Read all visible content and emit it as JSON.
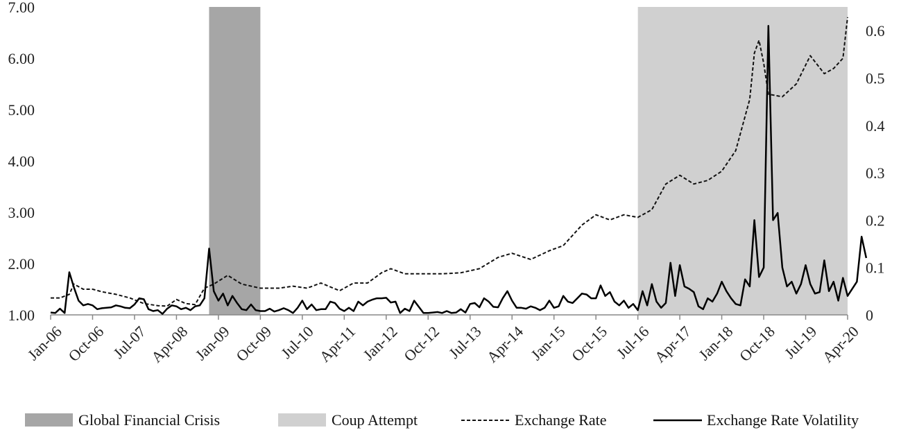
{
  "chart_data": {
    "type": "line",
    "x_tick_labels": [
      "Jan-06",
      "Oct-06",
      "Jul-07",
      "Apr-08",
      "Jan-09",
      "Oct-09",
      "Jul-10",
      "Apr-11",
      "Jan-12",
      "Oct-12",
      "Jul-13",
      "Apr-14",
      "Jan-15",
      "Oct-15",
      "Jul-16",
      "Apr-17",
      "Jan-18",
      "Oct-18",
      "Jul-19",
      "Apr-20"
    ],
    "y_left": {
      "ticks": [
        "1.00",
        "2.00",
        "3.00",
        "4.00",
        "5.00",
        "6.00",
        "7.00"
      ],
      "lim": [
        1,
        7
      ]
    },
    "y_right": {
      "ticks": [
        "0",
        "0.1",
        "0.2",
        "0.3",
        "0.4",
        "0.5",
        "0.6"
      ],
      "lim": [
        0,
        0.65
      ]
    },
    "grid": false,
    "legend_placement": "bottom",
    "shaded_periods": [
      {
        "name": "Global Financial Crisis",
        "start": "Nov-08",
        "end": "Oct-09",
        "color": "#a6a6a6"
      },
      {
        "name": "Coup Attempt",
        "start": "Jul-16",
        "end": "Apr-20",
        "color": "#d0d0d0"
      }
    ],
    "series": [
      {
        "name": "Exchange Rate",
        "axis": "left",
        "style": "dashed",
        "color": "#111111",
        "points": [
          [
            "Jan-06",
            1.33
          ],
          [
            "Mar-06",
            1.33
          ],
          [
            "May-06",
            1.4
          ],
          [
            "Jun-06",
            1.6
          ],
          [
            "Aug-06",
            1.5
          ],
          [
            "Oct-06",
            1.5
          ],
          [
            "Dec-06",
            1.45
          ],
          [
            "Mar-07",
            1.4
          ],
          [
            "Jun-07",
            1.33
          ],
          [
            "Sep-07",
            1.22
          ],
          [
            "Dec-07",
            1.18
          ],
          [
            "Feb-08",
            1.17
          ],
          [
            "Apr-08",
            1.3
          ],
          [
            "Jun-08",
            1.22
          ],
          [
            "Aug-08",
            1.2
          ],
          [
            "Oct-08",
            1.52
          ],
          [
            "Dec-08",
            1.6
          ],
          [
            "Mar-09",
            1.77
          ],
          [
            "Jun-09",
            1.6
          ],
          [
            "Oct-09",
            1.52
          ],
          [
            "Feb-10",
            1.52
          ],
          [
            "May-10",
            1.56
          ],
          [
            "Aug-10",
            1.52
          ],
          [
            "Nov-10",
            1.62
          ],
          [
            "Mar-11",
            1.47
          ],
          [
            "Jun-11",
            1.62
          ],
          [
            "Sep-11",
            1.62
          ],
          [
            "Dec-11",
            1.82
          ],
          [
            "Feb-12",
            1.9
          ],
          [
            "May-12",
            1.8
          ],
          [
            "Sep-12",
            1.8
          ],
          [
            "Jan-13",
            1.8
          ],
          [
            "May-13",
            1.82
          ],
          [
            "Sep-13",
            1.9
          ],
          [
            "Jan-14",
            2.12
          ],
          [
            "Apr-14",
            2.2
          ],
          [
            "Aug-14",
            2.08
          ],
          [
            "Dec-14",
            2.25
          ],
          [
            "Mar-15",
            2.35
          ],
          [
            "Jul-15",
            2.75
          ],
          [
            "Oct-15",
            2.95
          ],
          [
            "Jan-16",
            2.85
          ],
          [
            "Apr-16",
            2.95
          ],
          [
            "Jul-16",
            2.9
          ],
          [
            "Oct-16",
            3.05
          ],
          [
            "Jan-17",
            3.55
          ],
          [
            "Apr-17",
            3.72
          ],
          [
            "Jul-17",
            3.55
          ],
          [
            "Oct-17",
            3.62
          ],
          [
            "Jan-18",
            3.8
          ],
          [
            "Apr-18",
            4.2
          ],
          [
            "Jul-18",
            5.2
          ],
          [
            "Aug-18",
            6.1
          ],
          [
            "Sep-18",
            6.35
          ],
          [
            "Oct-18",
            5.9
          ],
          [
            "Nov-18",
            5.3
          ],
          [
            "Feb-19",
            5.25
          ],
          [
            "May-19",
            5.5
          ],
          [
            "Aug-19",
            6.05
          ],
          [
            "Nov-19",
            5.7
          ],
          [
            "Jan-20",
            5.8
          ],
          [
            "Mar-20",
            6.0
          ],
          [
            "Apr-20",
            6.8
          ]
        ]
      },
      {
        "name": "Exchange Rate Volatility",
        "axis": "right",
        "style": "solid",
        "color": "#000000",
        "points": [
          [
            "Jan-06",
            0.005
          ],
          [
            "Feb-06",
            0.004
          ],
          [
            "Mar-06",
            0.013
          ],
          [
            "Apr-06",
            0.004
          ],
          [
            "May-06",
            0.09
          ],
          [
            "Jun-06",
            0.058
          ],
          [
            "Jul-06",
            0.03
          ],
          [
            "Aug-06",
            0.02
          ],
          [
            "Sep-06",
            0.023
          ],
          [
            "Oct-06",
            0.02
          ],
          [
            "Nov-06",
            0.012
          ],
          [
            "Dec-06",
            0.014
          ],
          [
            "Jan-07",
            0.015
          ],
          [
            "Feb-07",
            0.016
          ],
          [
            "Mar-07",
            0.02
          ],
          [
            "Apr-07",
            0.018
          ],
          [
            "May-07",
            0.015
          ],
          [
            "Jun-07",
            0.014
          ],
          [
            "Jul-07",
            0.022
          ],
          [
            "Aug-07",
            0.035
          ],
          [
            "Sep-07",
            0.033
          ],
          [
            "Oct-07",
            0.012
          ],
          [
            "Nov-07",
            0.008
          ],
          [
            "Dec-07",
            0.01
          ],
          [
            "Jan-08",
            0.002
          ],
          [
            "Feb-08",
            0.013
          ],
          [
            "Mar-08",
            0.02
          ],
          [
            "Apr-08",
            0.018
          ],
          [
            "May-08",
            0.012
          ],
          [
            "Jun-08",
            0.015
          ],
          [
            "Jul-08",
            0.01
          ],
          [
            "Aug-08",
            0.018
          ],
          [
            "Sep-08",
            0.02
          ],
          [
            "Oct-08",
            0.035
          ],
          [
            "Nov-08",
            0.14
          ],
          [
            "Dec-08",
            0.05
          ],
          [
            "Jan-09",
            0.03
          ],
          [
            "Feb-09",
            0.045
          ],
          [
            "Mar-09",
            0.02
          ],
          [
            "Apr-09",
            0.04
          ],
          [
            "May-09",
            0.025
          ],
          [
            "Jun-09",
            0.012
          ],
          [
            "Jul-09",
            0.01
          ],
          [
            "Aug-09",
            0.022
          ],
          [
            "Sep-09",
            0.01
          ],
          [
            "Oct-09",
            0.008
          ],
          [
            "Nov-09",
            0.008
          ],
          [
            "Dec-09",
            0.013
          ],
          [
            "Jan-10",
            0.007
          ],
          [
            "Feb-10",
            0.01
          ],
          [
            "Mar-10",
            0.014
          ],
          [
            "Apr-10",
            0.01
          ],
          [
            "May-10",
            0.004
          ],
          [
            "Jun-10",
            0.015
          ],
          [
            "Jul-10",
            0.03
          ],
          [
            "Aug-10",
            0.012
          ],
          [
            "Sep-10",
            0.022
          ],
          [
            "Oct-10",
            0.01
          ],
          [
            "Nov-10",
            0.012
          ],
          [
            "Dec-10",
            0.012
          ],
          [
            "Jan-11",
            0.028
          ],
          [
            "Feb-11",
            0.025
          ],
          [
            "Mar-11",
            0.013
          ],
          [
            "Apr-11",
            0.008
          ],
          [
            "May-11",
            0.015
          ],
          [
            "Jun-11",
            0.008
          ],
          [
            "Jul-11",
            0.028
          ],
          [
            "Aug-11",
            0.02
          ],
          [
            "Sep-11",
            0.028
          ],
          [
            "Oct-11",
            0.032
          ],
          [
            "Nov-11",
            0.035
          ],
          [
            "Dec-11",
            0.035
          ],
          [
            "Jan-12",
            0.036
          ],
          [
            "Feb-12",
            0.026
          ],
          [
            "Mar-12",
            0.028
          ],
          [
            "Apr-12",
            0.004
          ],
          [
            "May-12",
            0.013
          ],
          [
            "Jun-12",
            0.008
          ],
          [
            "Jul-12",
            0.03
          ],
          [
            "Aug-12",
            0.017
          ],
          [
            "Sep-12",
            0.004
          ],
          [
            "Oct-12",
            0.004
          ],
          [
            "Nov-12",
            0.005
          ],
          [
            "Dec-12",
            0.006
          ],
          [
            "Jan-13",
            0.004
          ],
          [
            "Feb-13",
            0.008
          ],
          [
            "Mar-13",
            0.004
          ],
          [
            "Apr-13",
            0.005
          ],
          [
            "May-13",
            0.012
          ],
          [
            "Jun-13",
            0.005
          ],
          [
            "Jul-13",
            0.023
          ],
          [
            "Aug-13",
            0.025
          ],
          [
            "Sep-13",
            0.016
          ],
          [
            "Oct-13",
            0.035
          ],
          [
            "Nov-13",
            0.028
          ],
          [
            "Dec-13",
            0.017
          ],
          [
            "Jan-14",
            0.016
          ],
          [
            "Feb-14",
            0.035
          ],
          [
            "Mar-14",
            0.05
          ],
          [
            "Apr-14",
            0.03
          ],
          [
            "May-14",
            0.015
          ],
          [
            "Jun-14",
            0.015
          ],
          [
            "Jul-14",
            0.013
          ],
          [
            "Aug-14",
            0.018
          ],
          [
            "Sep-14",
            0.015
          ],
          [
            "Oct-14",
            0.01
          ],
          [
            "Nov-14",
            0.015
          ],
          [
            "Dec-14",
            0.03
          ],
          [
            "Jan-15",
            0.015
          ],
          [
            "Feb-15",
            0.018
          ],
          [
            "Mar-15",
            0.04
          ],
          [
            "Apr-15",
            0.028
          ],
          [
            "May-15",
            0.025
          ],
          [
            "Jun-15",
            0.035
          ],
          [
            "Jul-15",
            0.045
          ],
          [
            "Aug-15",
            0.043
          ],
          [
            "Sep-15",
            0.035
          ],
          [
            "Oct-15",
            0.035
          ],
          [
            "Nov-15",
            0.062
          ],
          [
            "Dec-15",
            0.04
          ],
          [
            "Jan-16",
            0.048
          ],
          [
            "Feb-16",
            0.028
          ],
          [
            "Mar-16",
            0.02
          ],
          [
            "Apr-16",
            0.03
          ],
          [
            "May-16",
            0.015
          ],
          [
            "Jun-16",
            0.023
          ],
          [
            "Jul-16",
            0.01
          ],
          [
            "Aug-16",
            0.05
          ],
          [
            "Sep-16",
            0.02
          ],
          [
            "Oct-16",
            0.065
          ],
          [
            "Nov-16",
            0.028
          ],
          [
            "Dec-16",
            0.015
          ],
          [
            "Jan-17",
            0.025
          ],
          [
            "Feb-17",
            0.11
          ],
          [
            "Mar-17",
            0.04
          ],
          [
            "Apr-17",
            0.105
          ],
          [
            "May-17",
            0.06
          ],
          [
            "Jun-17",
            0.055
          ],
          [
            "Jul-17",
            0.048
          ],
          [
            "Aug-17",
            0.018
          ],
          [
            "Sep-17",
            0.012
          ],
          [
            "Oct-17",
            0.035
          ],
          [
            "Nov-17",
            0.028
          ],
          [
            "Dec-17",
            0.045
          ],
          [
            "Jan-18",
            0.07
          ],
          [
            "Feb-18",
            0.05
          ],
          [
            "Mar-18",
            0.035
          ],
          [
            "Apr-18",
            0.023
          ],
          [
            "May-18",
            0.02
          ],
          [
            "Jun-18",
            0.075
          ],
          [
            "Jul-18",
            0.06
          ],
          [
            "Aug-18",
            0.2
          ],
          [
            "Sep-18",
            0.08
          ],
          [
            "Oct-18",
            0.1
          ],
          [
            "Nov-18",
            0.61
          ],
          [
            "Dec-18",
            0.2
          ],
          [
            "Jan-19",
            0.215
          ],
          [
            "Feb-19",
            0.1
          ],
          [
            "Mar-19",
            0.06
          ],
          [
            "Apr-19",
            0.07
          ],
          [
            "May-19",
            0.045
          ],
          [
            "Jun-19",
            0.065
          ],
          [
            "Jul-19",
            0.105
          ],
          [
            "Aug-19",
            0.065
          ],
          [
            "Sep-19",
            0.045
          ],
          [
            "Oct-19",
            0.048
          ],
          [
            "Nov-19",
            0.115
          ],
          [
            "Dec-19",
            0.05
          ],
          [
            "Jan-20",
            0.07
          ],
          [
            "Feb-20",
            0.03
          ],
          [
            "Mar-20",
            0.078
          ],
          [
            "Apr-20",
            0.04
          ],
          [
            "May-20",
            0.055
          ],
          [
            "Jun-20",
            0.07
          ],
          [
            "Jul-20",
            0.165
          ],
          [
            "Aug-20",
            0.12
          ]
        ]
      }
    ]
  },
  "legend": {
    "gfc": "Global Financial Crisis",
    "coup": "Coup Attempt",
    "rate": "Exchange Rate",
    "vol": "Exchange Rate Volatility"
  }
}
